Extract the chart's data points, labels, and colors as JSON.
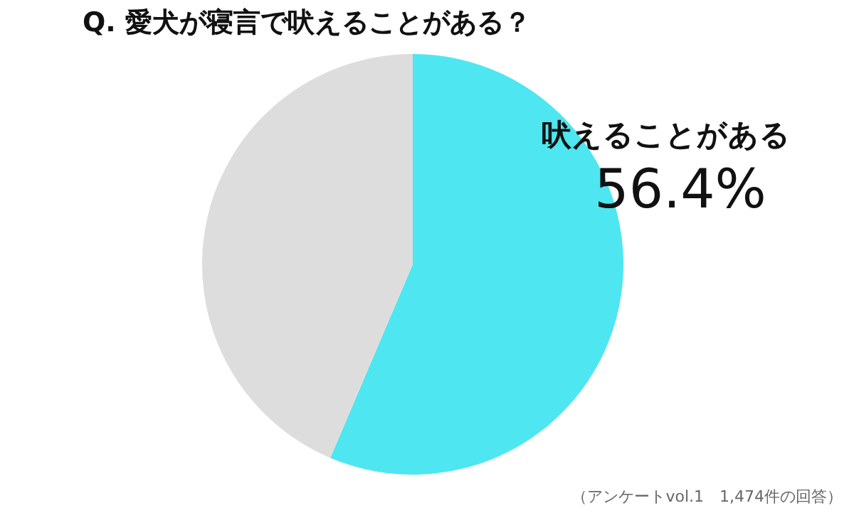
{
  "chart_data": {
    "type": "pie",
    "title": "Q.  愛犬が寝言で吠えることがある？",
    "categories": [
      "吠えることがある",
      null
    ],
    "values": [
      56.4,
      43.6
    ],
    "colors": [
      "#4ee6f0",
      "#dddddd"
    ],
    "value_labels": [
      "56.4%",
      null
    ],
    "legend": false,
    "annotations": [
      "（アンケートvol.1　1,474件の回答）"
    ]
  }
}
